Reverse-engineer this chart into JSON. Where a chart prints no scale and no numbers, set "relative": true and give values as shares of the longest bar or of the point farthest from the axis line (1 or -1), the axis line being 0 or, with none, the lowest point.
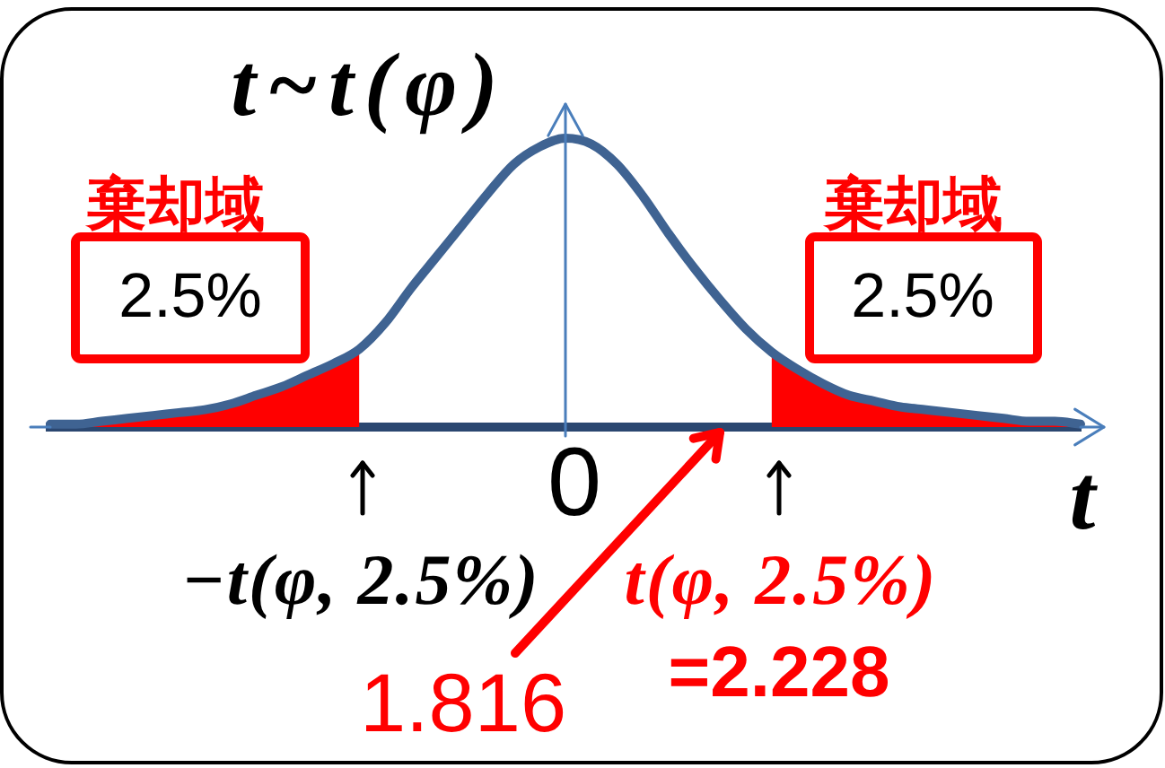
{
  "chart_data": {
    "type": "line",
    "title": "t~t(φ)",
    "xlabel": "t",
    "relative": true,
    "categories": [
      null,
      null,
      null,
      null,
      null,
      null,
      null,
      null,
      null,
      null,
      null,
      null,
      null,
      null,
      null,
      null,
      null,
      null,
      null,
      null,
      null,
      null,
      null,
      null,
      null,
      null,
      null,
      null,
      null,
      null,
      null,
      null,
      null,
      null,
      null,
      null,
      null,
      null,
      null,
      null,
      null
    ],
    "series": [
      {
        "type": "area",
        "color": "#ff0000",
        "values": [
          0.01,
          0.01,
          0.02,
          0.03,
          0.04,
          0.05,
          0.06,
          0.08,
          0.11,
          0.14,
          0.18,
          0.22,
          0.27,
          null,
          null,
          null,
          null,
          null,
          null,
          null,
          null,
          null,
          null,
          null,
          null,
          null,
          null,
          null,
          null,
          null,
          null,
          null,
          null,
          null,
          null,
          null,
          null,
          null,
          null,
          null,
          null
        ]
      },
      {
        "type": "area",
        "color": "#ff0000",
        "values": [
          null,
          null,
          null,
          null,
          null,
          null,
          null,
          null,
          null,
          null,
          null,
          null,
          null,
          null,
          null,
          null,
          null,
          null,
          null,
          null,
          null,
          null,
          null,
          null,
          null,
          null,
          null,
          null,
          0.26,
          0.2,
          0.15,
          0.11,
          0.09,
          0.07,
          0.06,
          0.05,
          0.04,
          0.03,
          0.02,
          0.02,
          0.01
        ]
      },
      {
        "color": "#3f6392",
        "values": [
          0.01,
          0.01,
          0.02,
          0.03,
          0.04,
          0.05,
          0.06,
          0.08,
          0.11,
          0.14,
          0.18,
          0.22,
          0.27,
          0.36,
          0.48,
          0.59,
          0.7,
          0.81,
          0.91,
          0.97,
          1,
          0.98,
          0.91,
          0.8,
          0.67,
          0.55,
          0.44,
          0.34,
          0.26,
          0.2,
          0.15,
          0.11,
          0.09,
          0.07,
          0.06,
          0.05,
          0.04,
          0.03,
          0.02,
          0.02,
          0.01
        ]
      }
    ],
    "annotations": [
      "棄却域",
      "2.5%",
      "棄却域",
      "2.5%",
      "−t(φ, 2.5%)",
      "t(φ, 2.5%)",
      "=2.228",
      "1.816",
      "0"
    ]
  }
}
